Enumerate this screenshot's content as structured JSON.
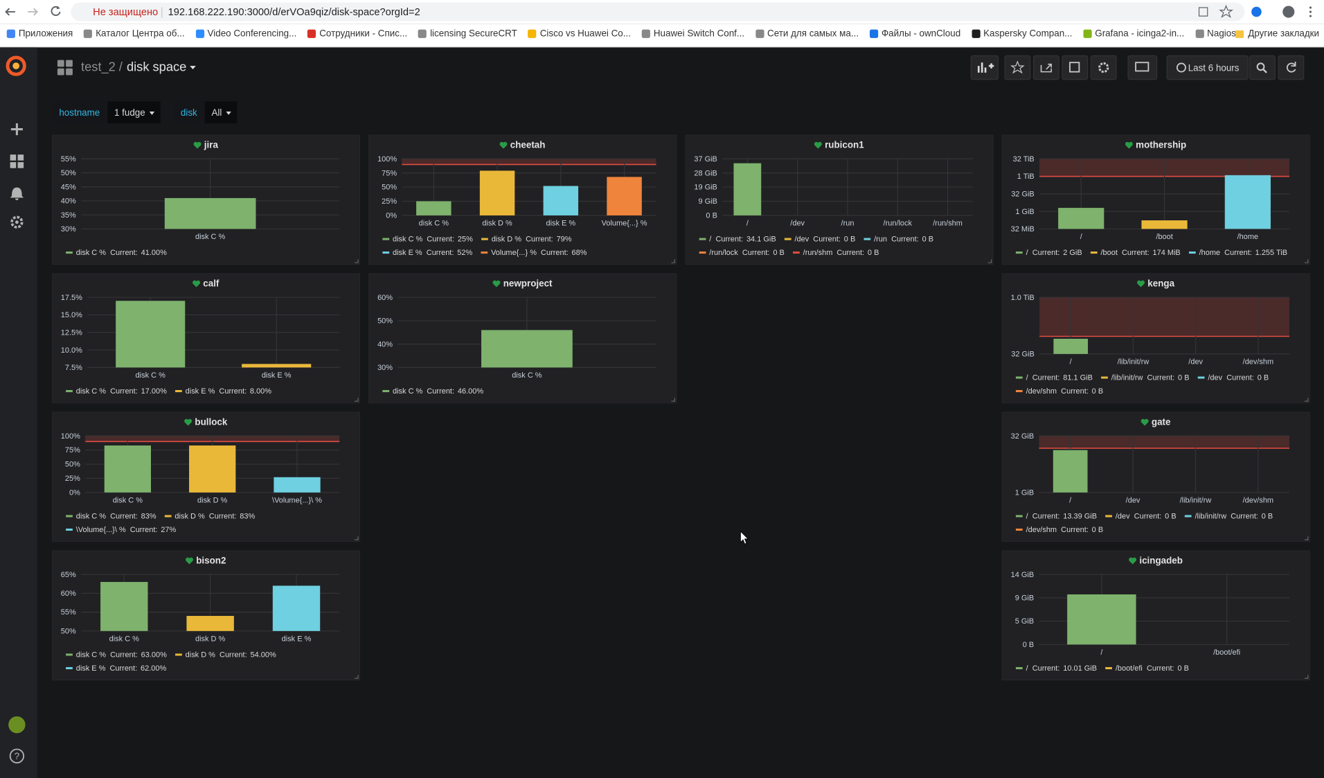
{
  "browser": {
    "security": "Не защищено",
    "url": "192.168.222.190:3000/d/erVOa9qiz/disk-space?orgId=2",
    "bookmarks": [
      "Приложения",
      "Каталог Центра об...",
      "Video Conferencing...",
      "Сотрудники - Спис...",
      "licensing SecureCRT",
      "Cisco vs Huawei Co...",
      "Huawei Switch Conf...",
      "Сети для самых ма...",
      "Файлы - ownCloud",
      "Kaspersky Compan...",
      "Grafana - icinga2-in...",
      "Nagios"
    ],
    "other_bookmarks": "Другие закладки"
  },
  "dashboard": {
    "folder": "test_2",
    "separator": "/",
    "title": "disk space",
    "time_range": "Last 6 hours",
    "help": "?",
    "variables": [
      {
        "name": "hostname",
        "value": "1 fudge"
      },
      {
        "name": "disk",
        "value": "All"
      }
    ]
  },
  "chart_data": [
    {
      "type": "bar",
      "title": "jira",
      "categories": [
        "disk C %"
      ],
      "values": [
        41
      ],
      "value_labels": [
        "41.00%"
      ],
      "current_label": "Current:",
      "colors": [
        "#7eb26d"
      ],
      "ylim": [
        30,
        55
      ],
      "yticks": [
        {
          "value": 30,
          "label": "30%"
        },
        {
          "value": 35,
          "label": "35%"
        },
        {
          "value": 40,
          "label": "40%"
        },
        {
          "value": 45,
          "label": "45%"
        },
        {
          "value": 50,
          "label": "50%"
        },
        {
          "value": 55,
          "label": "55%"
        }
      ]
    },
    {
      "type": "bar",
      "title": "cheetah",
      "categories": [
        "disk C %",
        "disk D %",
        "disk E %",
        "Volume{...} %"
      ],
      "values": [
        25,
        79,
        52,
        68
      ],
      "value_labels": [
        "25%",
        "79%",
        "52%",
        "68%"
      ],
      "current_label": "Current:",
      "colors": [
        "#7eb26d",
        "#eab839",
        "#6ed0e0",
        "#ef843c"
      ],
      "ylim": [
        0,
        100
      ],
      "threshold": 90,
      "yticks": [
        {
          "value": 0,
          "label": "0%"
        },
        {
          "value": 25,
          "label": "25%"
        },
        {
          "value": 50,
          "label": "50%"
        },
        {
          "value": 75,
          "label": "75%"
        },
        {
          "value": 100,
          "label": "100%"
        }
      ]
    },
    {
      "type": "bar",
      "title": "rubicon1",
      "categories": [
        "/",
        "/dev",
        "/run",
        "/run/lock",
        "/run/shm"
      ],
      "values": [
        34.1,
        0,
        0,
        0,
        0
      ],
      "value_labels": [
        "34.1 GiB",
        "0 B",
        "0 B",
        "0 B",
        "0 B"
      ],
      "current_label": "Current:",
      "colors": [
        "#7eb26d",
        "#eab839",
        "#6ed0e0",
        "#ef843c",
        "#e24d42"
      ],
      "ylim": [
        0,
        37
      ],
      "yticks": [
        {
          "value": 0,
          "label": "0 B"
        },
        {
          "value": 9.25,
          "label": "9 GiB"
        },
        {
          "value": 18.5,
          "label": "19 GiB"
        },
        {
          "value": 27.75,
          "label": "28 GiB"
        },
        {
          "value": 37,
          "label": "37 GiB"
        }
      ]
    },
    {
      "type": "bar",
      "title": "mothership",
      "categories": [
        "/",
        "/boot",
        "/home"
      ],
      "values": [
        2,
        0.17,
        1285.1
      ],
      "value_labels": [
        "2 GiB",
        "174 MiB",
        "1.255 TiB"
      ],
      "current_label": "Current:",
      "colors": [
        "#7eb26d",
        "#eab839",
        "#6ed0e0"
      ],
      "ylim": [
        0.03125,
        32768
      ],
      "log": true,
      "threshold": 1024,
      "yticks": [
        {
          "value": 0.03125,
          "label": "32 MiB"
        },
        {
          "value": 1,
          "label": "1 GiB"
        },
        {
          "value": 32,
          "label": "32 GiB"
        },
        {
          "value": 1024,
          "label": "1 TiB"
        },
        {
          "value": 32768,
          "label": "32 TiB"
        }
      ]
    },
    {
      "type": "bar",
      "title": "calf",
      "categories": [
        "disk C %",
        "disk E %"
      ],
      "values": [
        17,
        8
      ],
      "value_labels": [
        "17.00%",
        "8.00%"
      ],
      "current_label": "Current:",
      "colors": [
        "#7eb26d",
        "#eab839"
      ],
      "ylim": [
        7.5,
        17.5
      ],
      "yticks": [
        {
          "value": 7.5,
          "label": "7.5%"
        },
        {
          "value": 10,
          "label": "10.0%"
        },
        {
          "value": 12.5,
          "label": "12.5%"
        },
        {
          "value": 15,
          "label": "15.0%"
        },
        {
          "value": 17.5,
          "label": "17.5%"
        }
      ]
    },
    {
      "type": "bar",
      "title": "newproject",
      "categories": [
        "disk C %"
      ],
      "values": [
        46
      ],
      "value_labels": [
        "46.00%"
      ],
      "current_label": "Current:",
      "colors": [
        "#7eb26d"
      ],
      "ylim": [
        30,
        60
      ],
      "yticks": [
        {
          "value": 30,
          "label": "30%"
        },
        {
          "value": 40,
          "label": "40%"
        },
        {
          "value": 50,
          "label": "50%"
        },
        {
          "value": 60,
          "label": "60%"
        }
      ]
    },
    {
      "type": "bar",
      "title": "kenga",
      "categories": [
        "/",
        "/lib/init/rw",
        "/dev",
        "/dev/shm"
      ],
      "values": [
        81.1,
        0,
        0,
        0
      ],
      "value_labels": [
        "81.1 GiB",
        "0 B",
        "0 B",
        "0 B"
      ],
      "current_label": "Current:",
      "colors": [
        "#7eb26d",
        "#eab839",
        "#6ed0e0",
        "#ef843c"
      ],
      "ylim": [
        32,
        1024
      ],
      "log": true,
      "threshold": 94,
      "yticks": [
        {
          "value": 32,
          "label": "32 GiB"
        },
        {
          "value": 1024,
          "label": "1.0 TiB"
        }
      ]
    },
    {
      "type": "bar",
      "title": "bullock",
      "categories": [
        "disk C %",
        "disk D %",
        "\\Volume{...}\\ %"
      ],
      "values": [
        83,
        83,
        27
      ],
      "value_labels": [
        "83%",
        "83%",
        "27%"
      ],
      "current_label": "Current:",
      "colors": [
        "#7eb26d",
        "#eab839",
        "#6ed0e0"
      ],
      "ylim": [
        0,
        100
      ],
      "threshold": 90,
      "yticks": [
        {
          "value": 0,
          "label": "0%"
        },
        {
          "value": 25,
          "label": "25%"
        },
        {
          "value": 50,
          "label": "50%"
        },
        {
          "value": 75,
          "label": "75%"
        },
        {
          "value": 100,
          "label": "100%"
        }
      ]
    },
    {
      "type": "bar",
      "title": "gate",
      "categories": [
        "/",
        "/dev",
        "/lib/init/rw",
        "/dev/shm"
      ],
      "values": [
        13.39,
        0,
        0,
        0
      ],
      "value_labels": [
        "13.39 GiB",
        "0 B",
        "0 B",
        "0 B"
      ],
      "current_label": "Current:",
      "colors": [
        "#7eb26d",
        "#eab839",
        "#6ed0e0",
        "#ef843c"
      ],
      "ylim": [
        1,
        32
      ],
      "log": true,
      "threshold": 15,
      "yticks": [
        {
          "value": 1,
          "label": "1 GiB"
        },
        {
          "value": 32,
          "label": "32 GiB"
        }
      ]
    },
    {
      "type": "bar",
      "title": "bison2",
      "categories": [
        "disk C %",
        "disk D %",
        "disk E %"
      ],
      "values": [
        63,
        54,
        62
      ],
      "value_labels": [
        "63.00%",
        "54.00%",
        "62.00%"
      ],
      "current_label": "Current:",
      "colors": [
        "#7eb26d",
        "#eab839",
        "#6ed0e0"
      ],
      "ylim": [
        50,
        65
      ],
      "yticks": [
        {
          "value": 50,
          "label": "50%"
        },
        {
          "value": 55,
          "label": "55%"
        },
        {
          "value": 60,
          "label": "60%"
        },
        {
          "value": 65,
          "label": "65%"
        }
      ]
    },
    {
      "type": "bar",
      "title": "icingadeb",
      "categories": [
        "/",
        "/boot/efi"
      ],
      "values": [
        10.01,
        0
      ],
      "value_labels": [
        "10.01 GiB",
        "0 B"
      ],
      "current_label": "Current:",
      "colors": [
        "#7eb26d",
        "#eab839"
      ],
      "ylim": [
        0,
        14
      ],
      "yticks": [
        {
          "value": 0,
          "label": "0 B"
        },
        {
          "value": 4.67,
          "label": "5 GiB"
        },
        {
          "value": 9.33,
          "label": "9 GiB"
        },
        {
          "value": 14,
          "label": "14 GiB"
        }
      ]
    }
  ]
}
